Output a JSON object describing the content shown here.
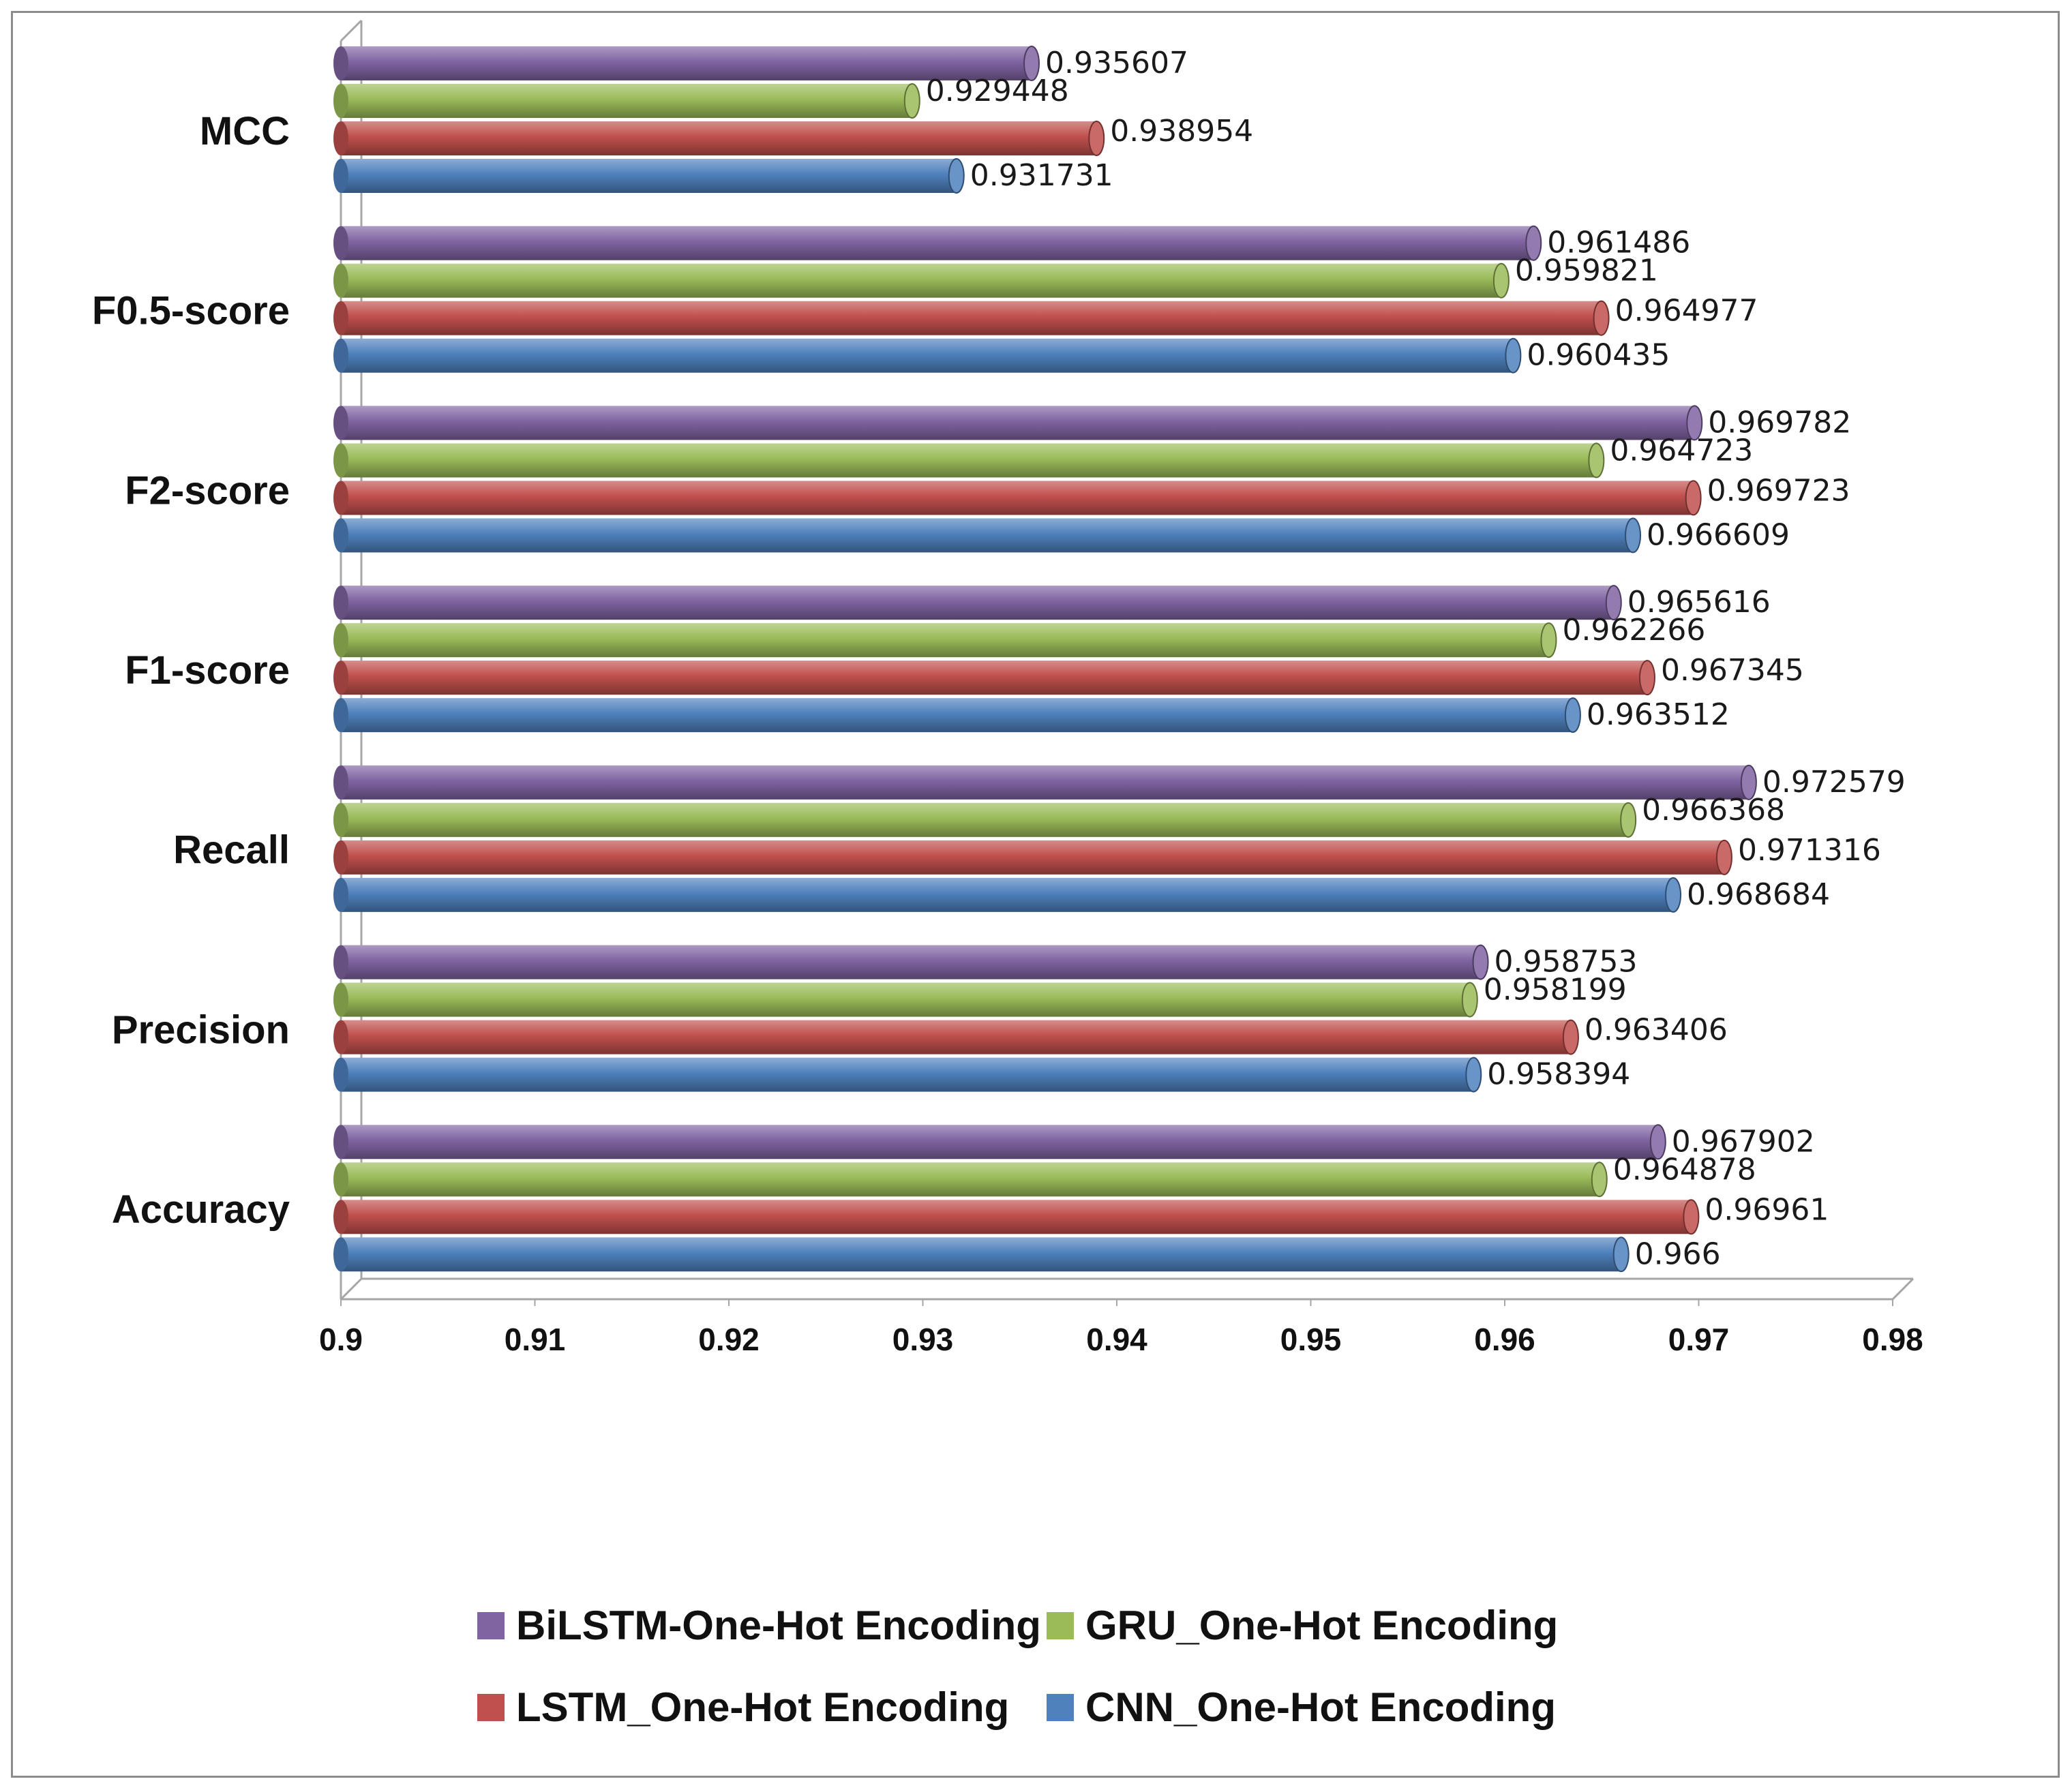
{
  "chart_data": {
    "type": "bar",
    "orientation": "horizontal",
    "title": "",
    "xlabel": "",
    "ylabel": "",
    "xlim": [
      0.9,
      0.98
    ],
    "x_ticks": [
      "0.9",
      "0.91",
      "0.92",
      "0.93",
      "0.94",
      "0.95",
      "0.96",
      "0.97",
      "0.98"
    ],
    "grid": false,
    "legend_position": "bottom",
    "categories": [
      "MCC",
      "F0.5-score",
      "F2-score",
      "F1-score",
      "Recall",
      "Precision",
      "Accuracy"
    ],
    "series": [
      {
        "name": "BiLSTM-One-Hot Encoding",
        "color": "#8064a2",
        "values": [
          0.935607,
          0.961486,
          0.969782,
          0.965616,
          0.972579,
          0.958753,
          0.967902
        ],
        "labels": [
          "0.935607",
          "0.961486",
          "0.969782",
          "0.965616",
          "0.972579",
          "0.958753",
          "0.967902"
        ]
      },
      {
        "name": "GRU_One-Hot Encoding",
        "color": "#9bbb59",
        "values": [
          0.929448,
          0.959821,
          0.964723,
          0.962266,
          0.966368,
          0.958199,
          0.964878
        ],
        "labels": [
          "0.929448",
          "0.959821",
          "0.964723",
          "0.962266",
          "0.966368",
          "0.958199",
          "0.964878"
        ]
      },
      {
        "name": "LSTM_One-Hot Encoding",
        "color": "#c0504d",
        "values": [
          0.938954,
          0.964977,
          0.969723,
          0.967345,
          0.971316,
          0.963406,
          0.96961
        ],
        "labels": [
          "0.938954",
          "0.964977",
          "0.969723",
          "0.967345",
          "0.971316",
          "0.963406",
          "0.96961"
        ]
      },
      {
        "name": "CNN_One-Hot Encoding",
        "color": "#4f81bd",
        "values": [
          0.931731,
          0.960435,
          0.966609,
          0.963512,
          0.968684,
          0.958394,
          0.966
        ],
        "labels": [
          "0.931731",
          "0.960435",
          "0.966609",
          "0.963512",
          "0.968684",
          "0.958394",
          "0.966"
        ]
      }
    ]
  }
}
